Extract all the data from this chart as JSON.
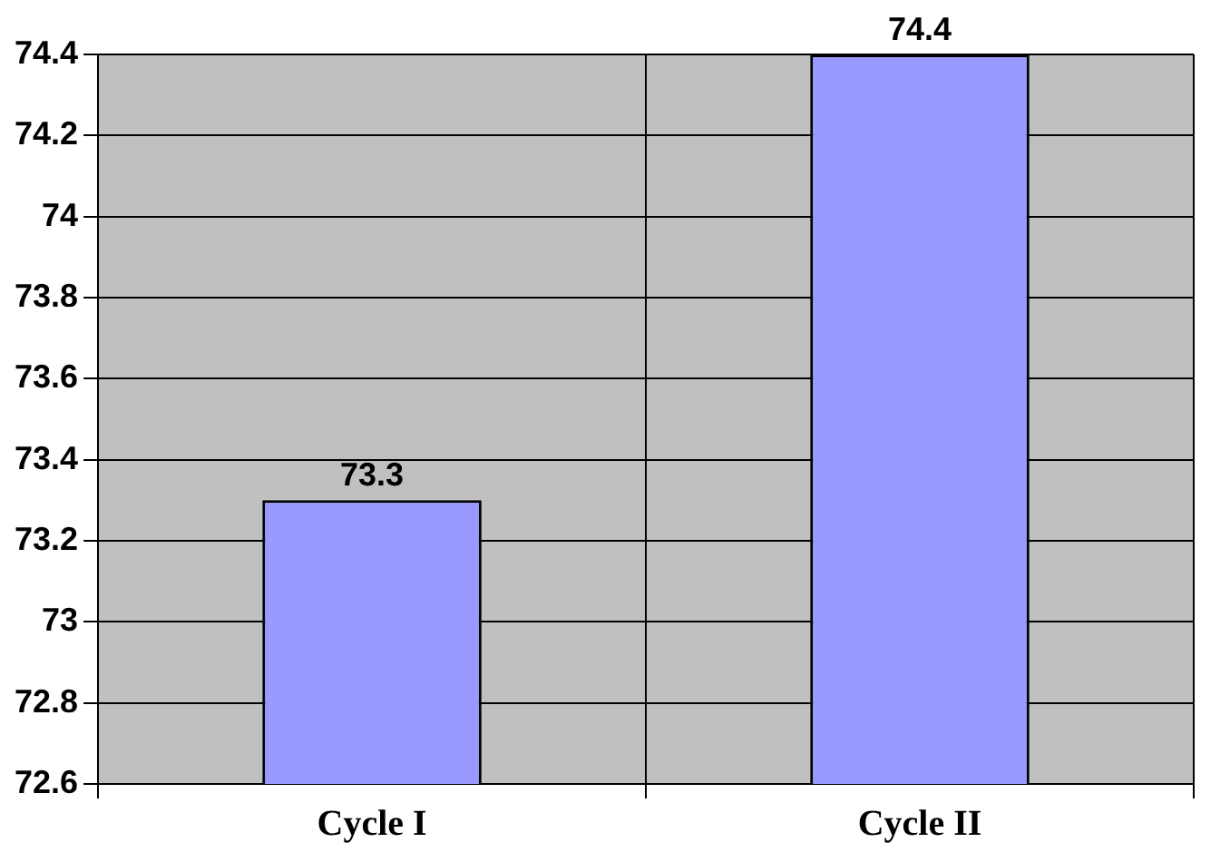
{
  "chart_data": {
    "type": "bar",
    "categories": [
      "Cycle I",
      "Cycle II"
    ],
    "values": [
      73.3,
      74.4
    ],
    "color": "#9999ff",
    "ylim": [
      72.6,
      74.4
    ],
    "yticks": [
      72.6,
      72.8,
      73,
      73.2,
      73.4,
      73.6,
      73.8,
      74,
      74.2,
      74.4
    ],
    "grid": true,
    "data_labels": true,
    "legend": false
  }
}
